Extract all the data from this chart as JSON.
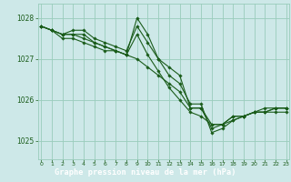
{
  "title": "Graphe pression niveau de la mer (hPa)",
  "bg_color": "#cde8e8",
  "grid_color": "#99ccbb",
  "line_color": "#1a5c1a",
  "marker_color": "#1a5c1a",
  "title_bg": "#2d6b2d",
  "title_fg": "#ffffff",
  "x_ticks": [
    0,
    1,
    2,
    3,
    4,
    5,
    6,
    7,
    8,
    9,
    10,
    11,
    12,
    13,
    14,
    15,
    16,
    17,
    18,
    19,
    20,
    21,
    22,
    23
  ],
  "y_ticks": [
    1025,
    1026,
    1027,
    1028
  ],
  "ylim": [
    1024.55,
    1028.35
  ],
  "xlim": [
    -0.3,
    23.3
  ],
  "series": [
    [
      1027.8,
      1027.7,
      1027.6,
      1027.7,
      1027.7,
      1027.5,
      1027.4,
      1027.3,
      1027.2,
      1027.8,
      1027.4,
      1027.0,
      1026.8,
      1026.6,
      1025.8,
      1025.8,
      1025.3,
      1025.4,
      1025.6,
      1025.6,
      1025.7,
      1025.7,
      1025.7,
      1025.7
    ],
    [
      1027.8,
      1027.7,
      1027.6,
      1027.6,
      1027.6,
      1027.4,
      1027.3,
      1027.2,
      1027.1,
      1027.0,
      1026.8,
      1026.6,
      1026.4,
      1026.2,
      1025.8,
      1025.8,
      1025.4,
      1025.4,
      1025.6,
      1025.6,
      1025.7,
      1025.7,
      1025.8,
      1025.8
    ],
    [
      1027.8,
      1027.7,
      1027.6,
      1027.6,
      1027.5,
      1027.4,
      1027.3,
      1027.2,
      1027.1,
      1028.0,
      1027.6,
      1027.0,
      1026.6,
      1026.4,
      1025.9,
      1025.9,
      1025.2,
      1025.3,
      1025.5,
      1025.6,
      1025.7,
      1025.8,
      1025.8,
      1025.8
    ],
    [
      1027.8,
      1027.7,
      1027.5,
      1027.5,
      1027.4,
      1027.3,
      1027.2,
      1027.2,
      1027.1,
      1027.6,
      1027.1,
      1026.7,
      1026.3,
      1026.0,
      1025.7,
      1025.6,
      1025.4,
      1025.4,
      1025.5,
      1025.6,
      1025.7,
      1025.7,
      1025.8,
      1025.8
    ]
  ]
}
